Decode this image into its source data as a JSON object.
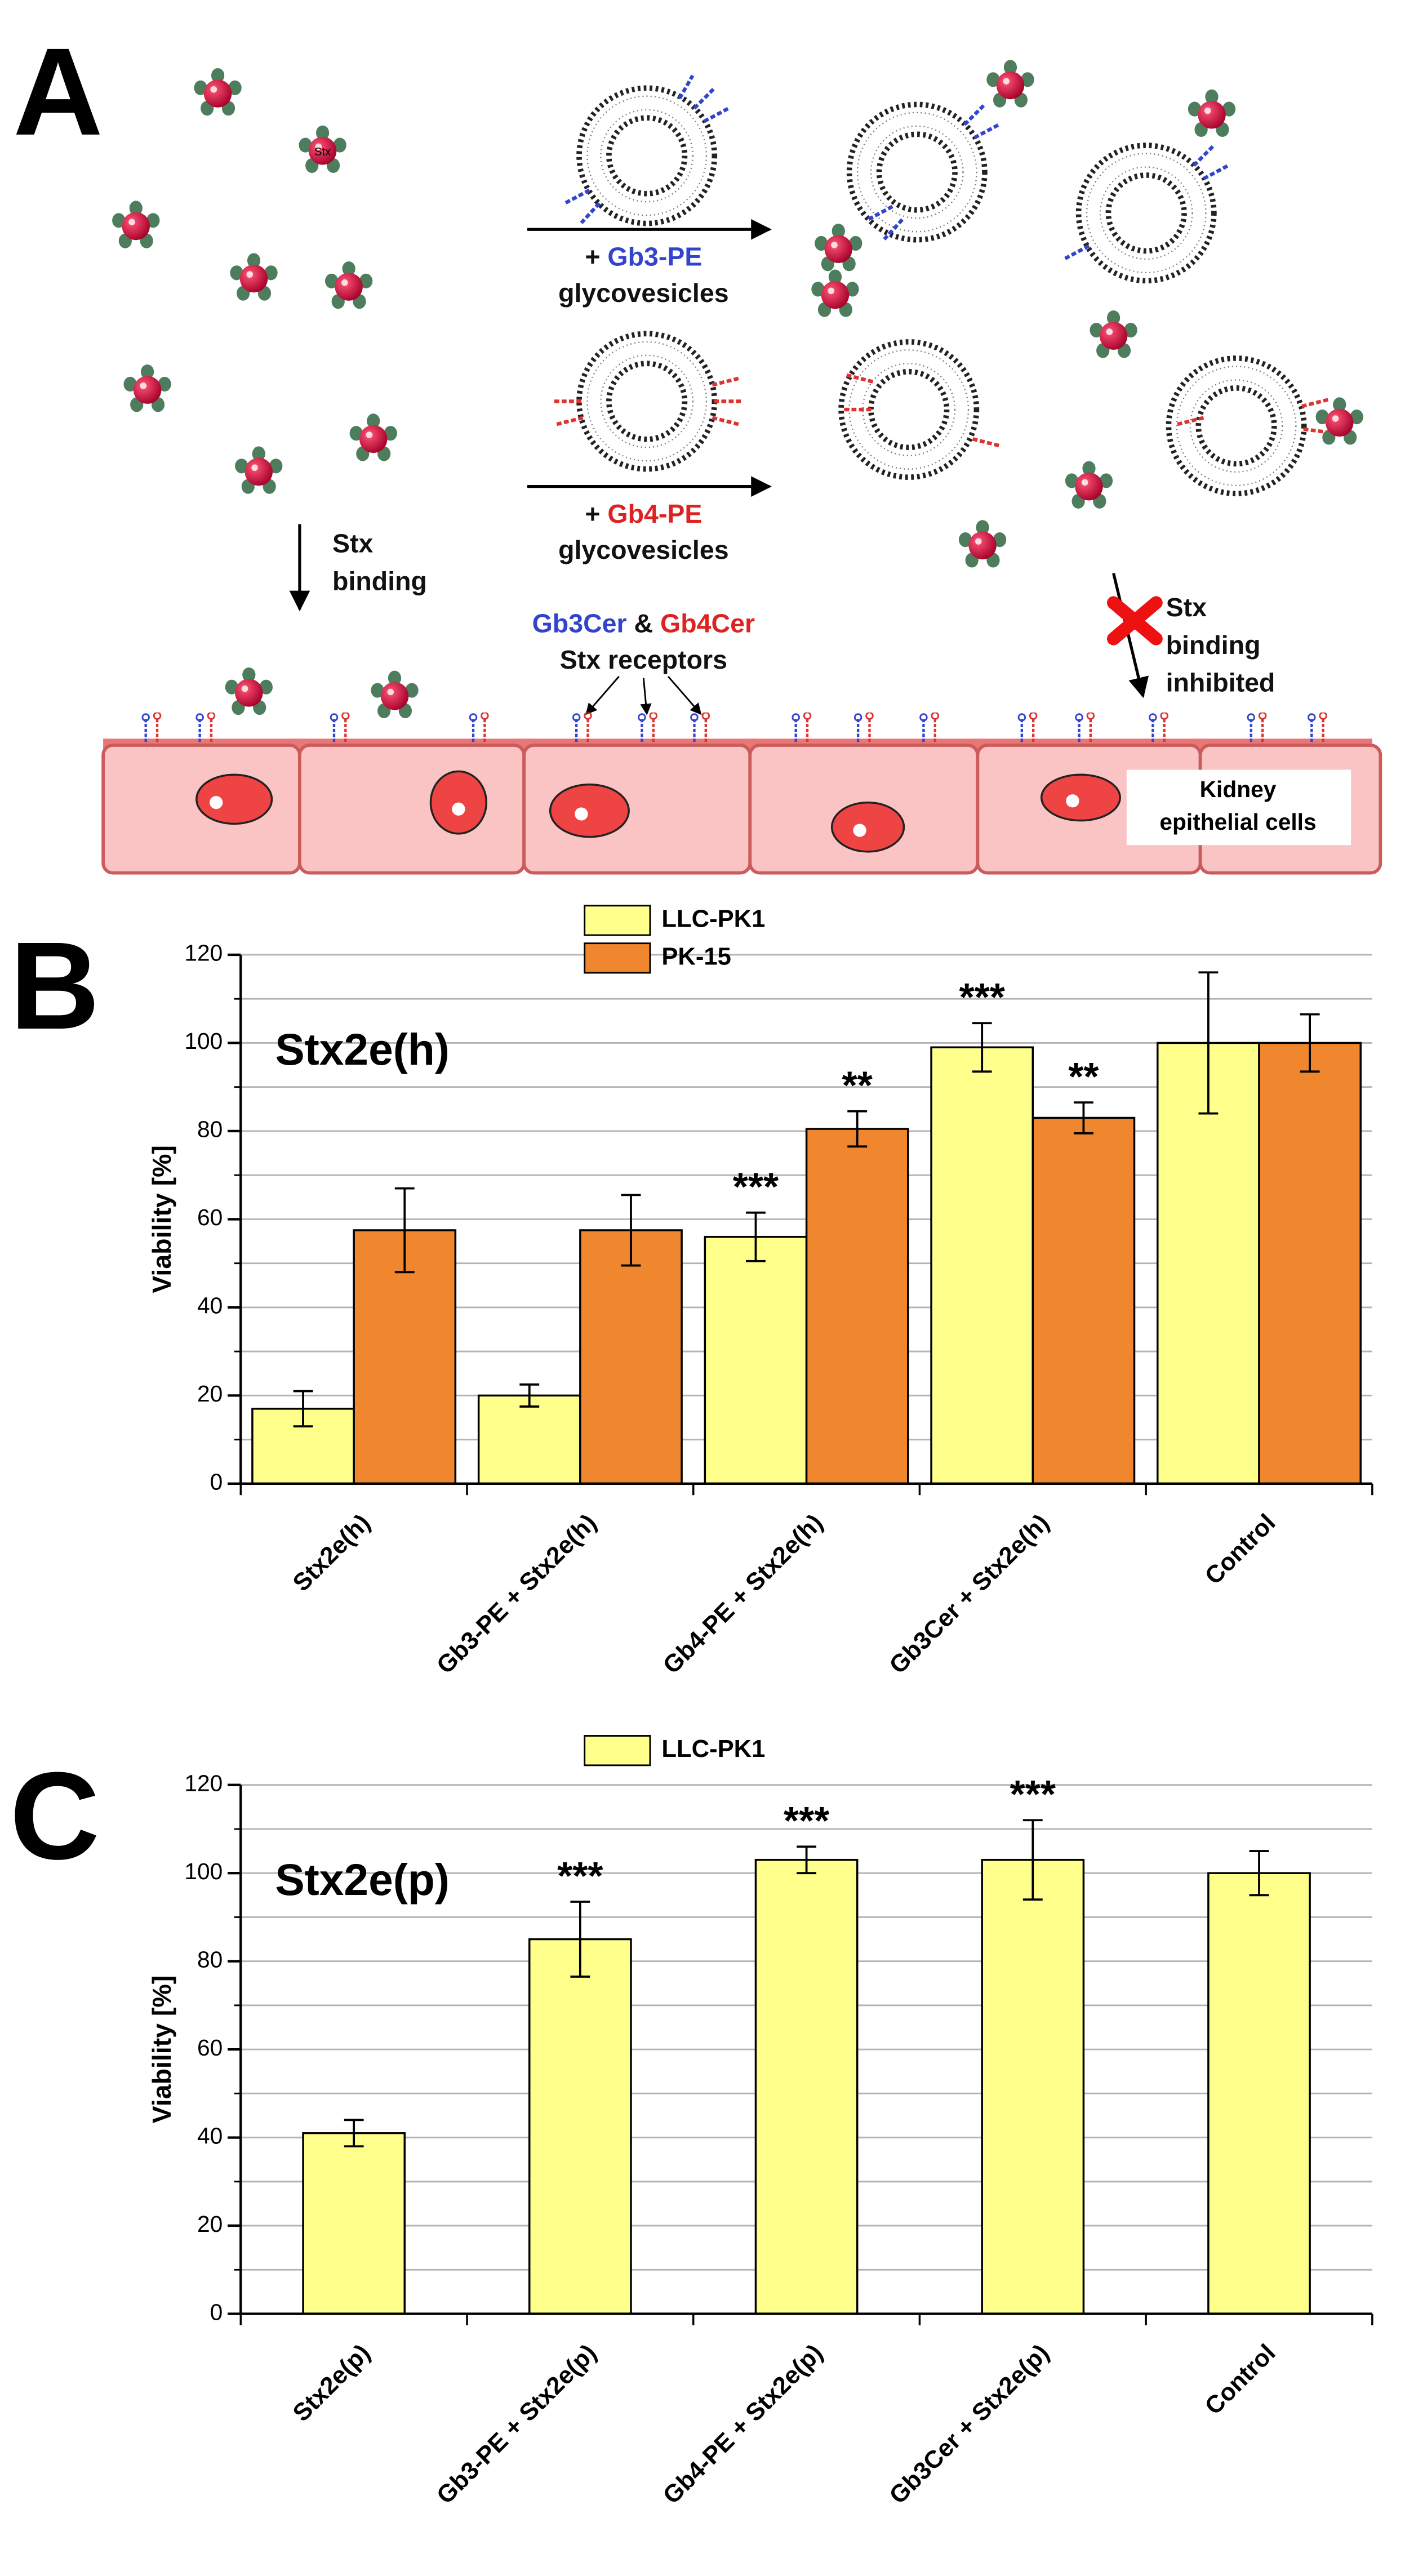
{
  "diagram": {
    "panel_label": "A",
    "toxin_label": "Stx",
    "gb3_plus": "+",
    "gb3_name": "Gb3-PE",
    "gb3_sub": "glycovesicles",
    "gb4_plus": "+",
    "gb4_name": "Gb4-PE",
    "gb4_sub": "glycovesicles",
    "stx_binding": [
      "Stx",
      "binding"
    ],
    "receptors": [
      "Gb3Cer",
      "&",
      "Gb4Cer"
    ],
    "receptors_sub": "Stx receptors",
    "inhibited": [
      "Stx",
      "binding",
      "inhibited"
    ],
    "cells": [
      "Kidney",
      "epithelial cells"
    ]
  },
  "chart_data": [
    {
      "type": "bar",
      "panel_label": "B",
      "title": "Stx2e(h)",
      "y_label": "Viability [%]",
      "categories": [
        "Stx2e(h)",
        "Gb3-PE + Stx2e(h)",
        "Gb4-PE + Stx2e(h)",
        "Gb3Cer + Stx2e(h)",
        "Control"
      ],
      "series": [
        {
          "name": "LLC-PK1",
          "color": "#ffff8c",
          "values": [
            17,
            20,
            56,
            99,
            100
          ],
          "errors": [
            4,
            2.5,
            5.5,
            5.5,
            16
          ],
          "significance": [
            null,
            null,
            "***",
            "***",
            null
          ]
        },
        {
          "name": "PK-15",
          "color": "#f0862e",
          "values": [
            57.5,
            57.5,
            80.5,
            83,
            100
          ],
          "errors": [
            9.5,
            8,
            4,
            3.5,
            6.5
          ],
          "significance": [
            null,
            null,
            "**",
            "**",
            null
          ]
        }
      ],
      "ylim": [
        0,
        120
      ],
      "yticks": [
        0,
        20,
        40,
        60,
        80,
        100,
        120
      ],
      "minor_yticks": [
        10,
        30,
        50,
        70,
        90,
        110
      ],
      "grid": true,
      "legend": "top"
    },
    {
      "type": "bar",
      "panel_label": "C",
      "title": "Stx2e(p)",
      "y_label": "Viability [%]",
      "categories": [
        "Stx2e(p)",
        "Gb3-PE + Stx2e(p)",
        "Gb4-PE + Stx2e(p)",
        "Gb3Cer + Stx2e(p)",
        "Control"
      ],
      "series": [
        {
          "name": "LLC-PK1",
          "color": "#ffff8c",
          "values": [
            41,
            85,
            103,
            103,
            100
          ],
          "errors": [
            3,
            8.5,
            3,
            9,
            5
          ],
          "significance": [
            null,
            "***",
            "***",
            "***",
            null
          ]
        }
      ],
      "ylim": [
        0,
        120
      ],
      "yticks": [
        0,
        20,
        40,
        60,
        80,
        100,
        120
      ],
      "minor_yticks": [
        10,
        30,
        50,
        70,
        90,
        110
      ],
      "grid": true,
      "legend": "top"
    }
  ]
}
